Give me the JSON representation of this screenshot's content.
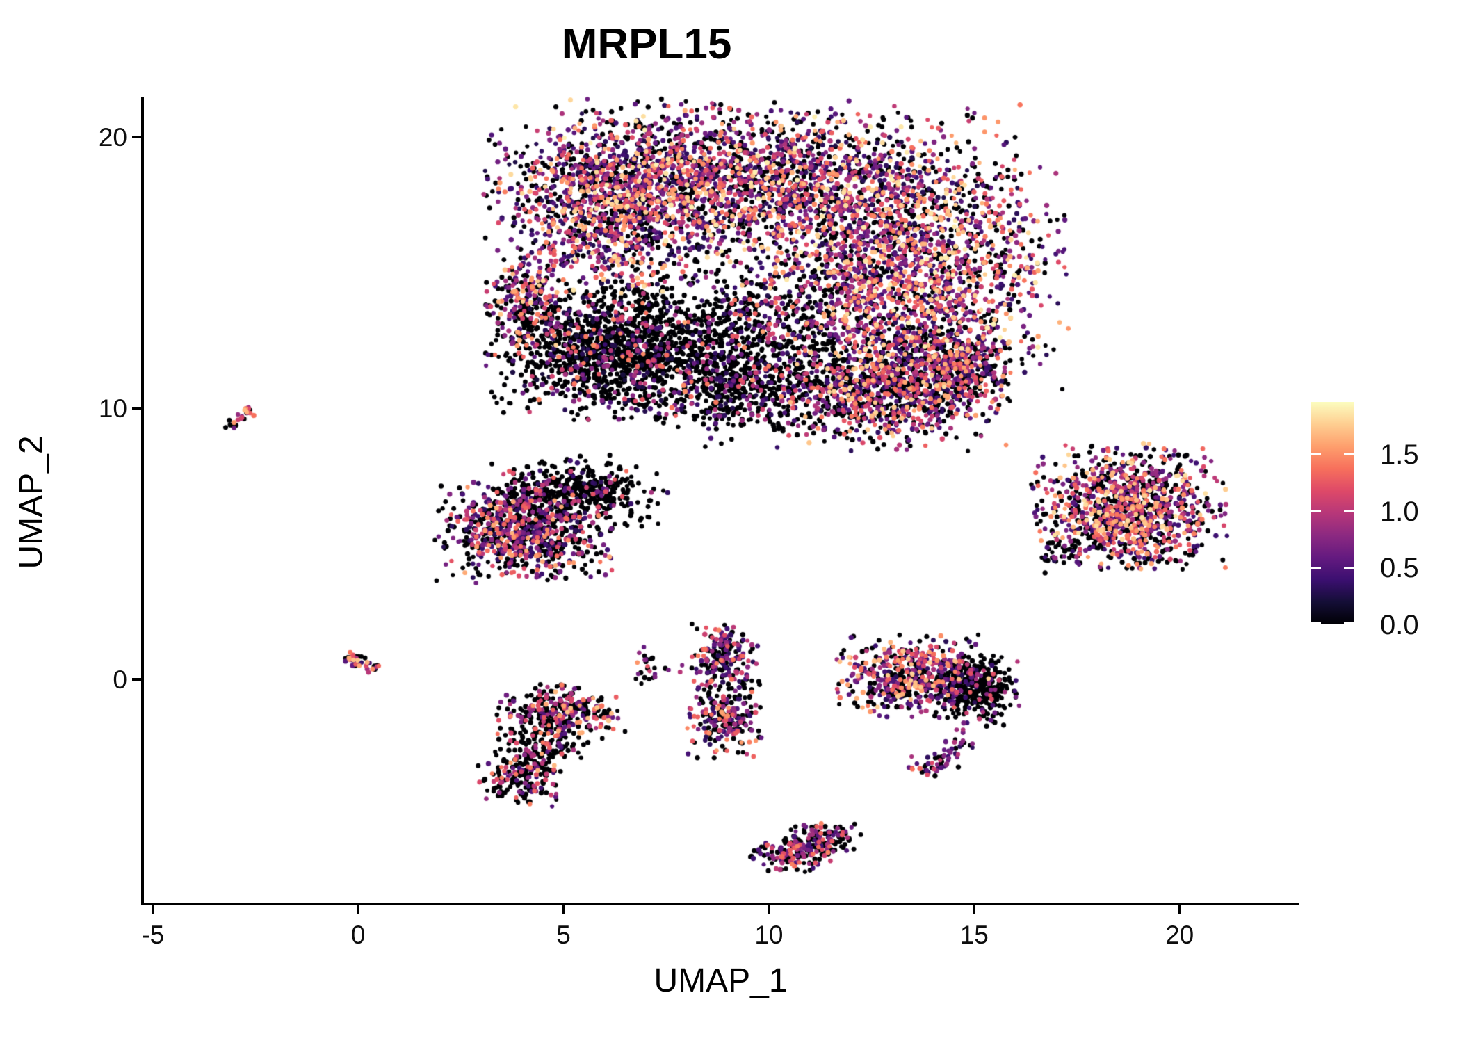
{
  "chart_data": {
    "type": "scatter",
    "title": "MRPL15",
    "xlabel": "UMAP_1",
    "ylabel": "UMAP_2",
    "xlim": [
      -5.25,
      22.9
    ],
    "ylim": [
      -8.23,
      21.46
    ],
    "grid": false,
    "legend_position": "right",
    "x_ticks": [
      {
        "value": -5,
        "label": "-5"
      },
      {
        "value": 0,
        "label": "0"
      },
      {
        "value": 5,
        "label": "5"
      },
      {
        "value": 10,
        "label": "10"
      },
      {
        "value": 15,
        "label": "15"
      },
      {
        "value": 20,
        "label": "20"
      }
    ],
    "y_ticks": [
      {
        "value": 0,
        "label": "0"
      },
      {
        "value": 10,
        "label": "10"
      },
      {
        "value": 20,
        "label": "20"
      }
    ],
    "color_scale": {
      "palette_name": "magma",
      "min": 0,
      "max": 1.96,
      "ticks": [
        {
          "value": 0.0,
          "label": "0.0"
        },
        {
          "value": 0.5,
          "label": "0.5"
        },
        {
          "value": 1.0,
          "label": "1.0"
        },
        {
          "value": 1.5,
          "label": "1.5"
        }
      ],
      "stops": [
        {
          "t": 0.0,
          "color": "#000004"
        },
        {
          "t": 0.1,
          "color": "#140e36"
        },
        {
          "t": 0.2,
          "color": "#3b0f70"
        },
        {
          "t": 0.3,
          "color": "#641a80"
        },
        {
          "t": 0.4,
          "color": "#8c2981"
        },
        {
          "t": 0.5,
          "color": "#b73779"
        },
        {
          "t": 0.6,
          "color": "#de4968"
        },
        {
          "t": 0.7,
          "color": "#f7705c"
        },
        {
          "t": 0.8,
          "color": "#fe9f6d"
        },
        {
          "t": 0.9,
          "color": "#fece91"
        },
        {
          "t": 1.0,
          "color": "#fcfdbf"
        }
      ]
    },
    "point_radius_px": 3.4,
    "seed": 1337,
    "clusters": [
      {
        "id": "main-top-band",
        "type": "gauss",
        "cx": 9.6,
        "cy": 18.3,
        "sx": 2.9,
        "sy": 1.35,
        "n": 2300,
        "zero_frac": 0.33,
        "lo": 0.25,
        "hi": 1.92,
        "skew": 1.6
      },
      {
        "id": "main-topleft-wedge",
        "type": "gauss",
        "cx": 6.2,
        "cy": 17.3,
        "sx": 1.25,
        "sy": 1.7,
        "n": 950,
        "zero_frac": 0.3,
        "lo": 0.25,
        "hi": 1.9,
        "skew": 1.5
      },
      {
        "id": "main-right-lobe",
        "type": "gauss",
        "cx": 13.3,
        "cy": 14.9,
        "sx": 1.75,
        "sy": 1.85,
        "n": 1700,
        "zero_frac": 0.27,
        "lo": 0.3,
        "hi": 1.92,
        "skew": 1.35
      },
      {
        "id": "main-left-hook",
        "type": "gauss",
        "cx": 4.05,
        "cy": 14.1,
        "sx": 0.45,
        "sy": 0.95,
        "n": 200,
        "zero_frac": 0.35,
        "lo": 0.4,
        "hi": 1.8,
        "skew": 1.1
      },
      {
        "id": "main-dark-core",
        "type": "gauss",
        "cx": 6.4,
        "cy": 12.2,
        "sx": 1.45,
        "sy": 1.15,
        "n": 1500,
        "zero_frac": 0.8,
        "lo": 0.2,
        "hi": 1.5,
        "skew": 1.9
      },
      {
        "id": "main-sparse-mid",
        "type": "gauss",
        "cx": 9.8,
        "cy": 12.4,
        "sx": 1.5,
        "sy": 1.4,
        "n": 650,
        "zero_frac": 0.72,
        "lo": 0.25,
        "hi": 1.6,
        "skew": 1.7
      },
      {
        "id": "main-lowerright-lobe",
        "type": "gauss",
        "cx": 12.9,
        "cy": 10.7,
        "sx": 1.3,
        "sy": 1.0,
        "n": 900,
        "zero_frac": 0.38,
        "lo": 0.3,
        "hi": 1.8,
        "skew": 1.35
      },
      {
        "id": "main-bottom-tail",
        "type": "gauss",
        "cx": 9.4,
        "cy": 10.6,
        "sx": 1.15,
        "sy": 0.65,
        "n": 300,
        "zero_frac": 0.78,
        "lo": 0.25,
        "hi": 1.5,
        "skew": 1.6
      },
      {
        "id": "main-right-edge",
        "type": "gauss",
        "cx": 14.4,
        "cy": 11.6,
        "sx": 0.8,
        "sy": 0.9,
        "n": 420,
        "zero_frac": 0.55,
        "lo": 0.3,
        "hi": 1.7,
        "skew": 1.5
      },
      {
        "id": "midleft-dark-ne",
        "type": "gauss",
        "cx": 5.35,
        "cy": 6.9,
        "sx": 0.95,
        "sy": 0.6,
        "n": 420,
        "zero_frac": 0.85,
        "lo": 0.3,
        "hi": 1.4,
        "skew": 1.6
      },
      {
        "id": "midleft-main",
        "type": "gauss",
        "cx": 4.0,
        "cy": 5.5,
        "sx": 0.95,
        "sy": 0.85,
        "n": 820,
        "zero_frac": 0.5,
        "lo": 0.3,
        "hi": 1.65,
        "skew": 1.7
      },
      {
        "id": "midleft-pink-pair",
        "type": "gauss",
        "cx": 3.6,
        "cy": 7.6,
        "sx": 0.12,
        "sy": 0.08,
        "n": 3,
        "zero_frac": 0.0,
        "lo": 0.9,
        "hi": 1.3,
        "skew": 1.0
      },
      {
        "id": "two-top",
        "type": "gauss",
        "cx": 4.95,
        "cy": -1.15,
        "sx": 0.7,
        "sy": 0.45,
        "n": 270,
        "zero_frac": 0.55,
        "lo": 0.45,
        "hi": 1.75,
        "skew": 1.15
      },
      {
        "id": "two-mid",
        "type": "gauss",
        "cx": 4.45,
        "cy": -2.3,
        "sx": 0.5,
        "sy": 0.5,
        "n": 150,
        "zero_frac": 0.75,
        "lo": 0.4,
        "hi": 1.6,
        "skew": 1.3
      },
      {
        "id": "two-bottom",
        "type": "gauss",
        "cx": 3.95,
        "cy": -3.6,
        "sx": 0.45,
        "sy": 0.5,
        "n": 170,
        "zero_frac": 0.6,
        "lo": 0.4,
        "hi": 1.7,
        "skew": 1.3
      },
      {
        "id": "cshape-top",
        "type": "gauss",
        "cx": 6.95,
        "cy": 0.7,
        "sx": 0.12,
        "sy": 0.22,
        "n": 14,
        "zero_frac": 0.4,
        "lo": 0.5,
        "hi": 1.7,
        "skew": 1.0
      },
      {
        "id": "cshape-bottom",
        "type": "gauss",
        "cx": 7.05,
        "cy": 0.05,
        "sx": 0.15,
        "sy": 0.12,
        "n": 9,
        "zero_frac": 0.5,
        "lo": 0.5,
        "hi": 1.5,
        "skew": 1.0
      },
      {
        "id": "stray-dots",
        "type": "gauss",
        "cx": 7.6,
        "cy": 0.45,
        "sx": 0.28,
        "sy": 0.15,
        "n": 6,
        "zero_frac": 0.7,
        "lo": 0.4,
        "hi": 1.2,
        "skew": 1.0
      },
      {
        "id": "vblob-top",
        "type": "gauss",
        "cx": 8.9,
        "cy": 0.85,
        "sx": 0.38,
        "sy": 0.55,
        "n": 190,
        "zero_frac": 0.42,
        "lo": 0.3,
        "hi": 1.45,
        "skew": 1.6
      },
      {
        "id": "vblob-bottom",
        "type": "gauss",
        "cx": 8.95,
        "cy": -1.4,
        "sx": 0.42,
        "sy": 0.7,
        "n": 230,
        "zero_frac": 0.45,
        "lo": 0.3,
        "hi": 1.6,
        "skew": 1.5
      },
      {
        "id": "round-main",
        "type": "gauss",
        "cx": 13.6,
        "cy": 0.15,
        "sx": 0.85,
        "sy": 0.68,
        "n": 560,
        "zero_frac": 0.42,
        "lo": 0.3,
        "hi": 1.8,
        "skew": 1.5
      },
      {
        "id": "round-dark-east",
        "type": "gauss",
        "cx": 15.1,
        "cy": -0.35,
        "sx": 0.45,
        "sy": 0.6,
        "n": 300,
        "zero_frac": 0.86,
        "lo": 0.3,
        "hi": 1.3,
        "skew": 1.6
      },
      {
        "id": "tail-a",
        "type": "gauss",
        "cx": 14.65,
        "cy": -2.1,
        "sx": 0.18,
        "sy": 0.25,
        "n": 18,
        "zero_frac": 0.25,
        "lo": 0.3,
        "hi": 1.0,
        "skew": 1.3
      },
      {
        "id": "tail-b",
        "type": "gauss",
        "cx": 14.3,
        "cy": -2.75,
        "sx": 0.2,
        "sy": 0.25,
        "n": 22,
        "zero_frac": 0.25,
        "lo": 0.3,
        "hi": 1.1,
        "skew": 1.3
      },
      {
        "id": "tail-c",
        "type": "gauss",
        "cx": 13.85,
        "cy": -3.25,
        "sx": 0.3,
        "sy": 0.18,
        "n": 26,
        "zero_frac": 0.3,
        "lo": 0.3,
        "hi": 1.4,
        "skew": 1.2
      },
      {
        "id": "bottom-left",
        "type": "gauss",
        "cx": 10.55,
        "cy": -6.45,
        "sx": 0.45,
        "sy": 0.3,
        "n": 120,
        "zero_frac": 0.55,
        "lo": 0.4,
        "hi": 1.5,
        "skew": 1.2
      },
      {
        "id": "bottom-right",
        "type": "gauss",
        "cx": 11.3,
        "cy": -5.9,
        "sx": 0.45,
        "sy": 0.3,
        "n": 130,
        "zero_frac": 0.55,
        "lo": 0.4,
        "hi": 1.5,
        "skew": 1.2
      },
      {
        "id": "right-main",
        "type": "gauss",
        "cx": 18.8,
        "cy": 6.3,
        "sx": 1.05,
        "sy": 1.05,
        "n": 1100,
        "zero_frac": 0.37,
        "lo": 0.35,
        "hi": 1.85,
        "skew": 1.25
      },
      {
        "id": "right-tail",
        "type": "gauss",
        "cx": 17.15,
        "cy": 4.7,
        "sx": 0.3,
        "sy": 0.25,
        "n": 40,
        "zero_frac": 0.7,
        "lo": 0.3,
        "hi": 1.2,
        "skew": 1.4
      },
      {
        "id": "far-left-streak",
        "type": "line",
        "x1": -3.2,
        "y1": 9.25,
        "x2": -2.55,
        "y2": 10.0,
        "jitter": 0.09,
        "n": 26,
        "zero_frac": 0.3,
        "lo": 0.4,
        "hi": 1.75,
        "skew": 1.1
      },
      {
        "id": "origin-streak",
        "type": "line",
        "x1": -0.3,
        "y1": 0.85,
        "x2": 0.45,
        "y2": 0.4,
        "jitter": 0.1,
        "n": 40,
        "zero_frac": 0.35,
        "lo": 0.35,
        "hi": 1.75,
        "skew": 1.2
      },
      {
        "id": "sparse-below-main",
        "type": "gauss",
        "cx": 9.5,
        "cy": 9.5,
        "sx": 1.6,
        "sy": 0.45,
        "n": 40,
        "zero_frac": 0.85,
        "lo": 0.3,
        "hi": 1.2,
        "skew": 1.5
      }
    ]
  }
}
